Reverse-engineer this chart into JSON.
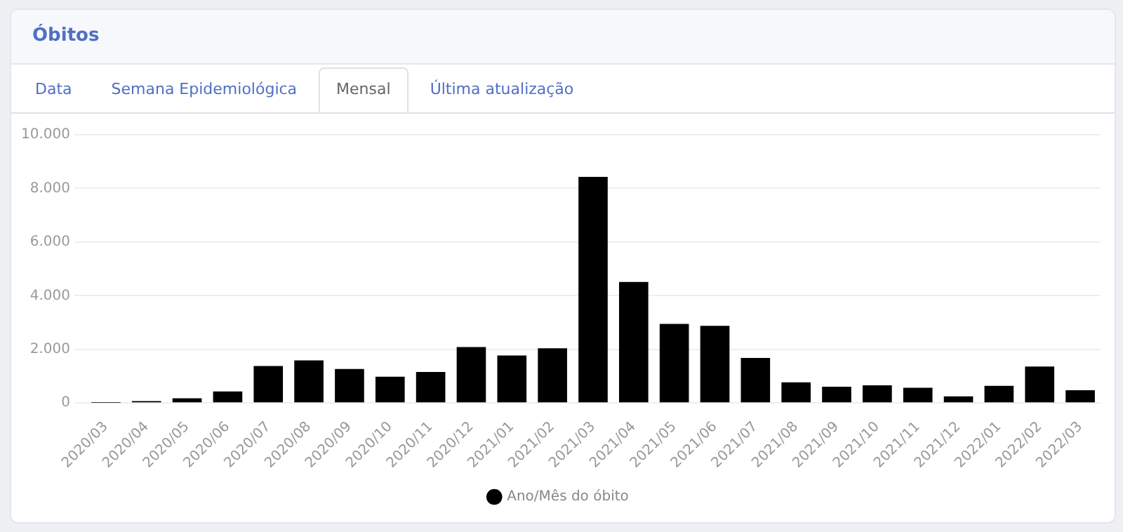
{
  "chart_data": {
    "type": "bar",
    "title": "Óbitos",
    "annotations": [
      "Data",
      "Semana Epidemiológica",
      "Mensal",
      "Última atualização"
    ],
    "categories": [
      "2020/03",
      "2020/04",
      "2020/05",
      "2020/06",
      "2020/07",
      "2020/08",
      "2020/09",
      "2020/10",
      "2020/11",
      "2020/12",
      "2021/01",
      "2021/02",
      "2021/03",
      "2021/04",
      "2021/05",
      "2021/06",
      "2021/07",
      "2021/08",
      "2021/09",
      "2021/10",
      "2021/11",
      "2021/12",
      "2022/01",
      "2022/02",
      "2022/03"
    ],
    "series": [
      {
        "name": "Ano/Mês do óbito",
        "color": "#000000",
        "values": [
          10,
          70,
          180,
          430,
          1380,
          1590,
          1270,
          980,
          1160,
          2090,
          1770,
          2040,
          8430,
          4510,
          2950,
          2880,
          1680,
          770,
          610,
          660,
          570,
          250,
          640,
          1360,
          480
        ]
      }
    ],
    "ylim": [
      0,
      10000
    ],
    "yticks": [
      {
        "value": 0,
        "label": "0"
      },
      {
        "value": 2000,
        "label": "2.000"
      },
      {
        "value": 4000,
        "label": "4.000"
      },
      {
        "value": 6000,
        "label": "6.000"
      },
      {
        "value": 8000,
        "label": "8.000"
      },
      {
        "value": 10000,
        "label": "10.000"
      }
    ],
    "grid": "y",
    "legend": "bottom"
  }
}
